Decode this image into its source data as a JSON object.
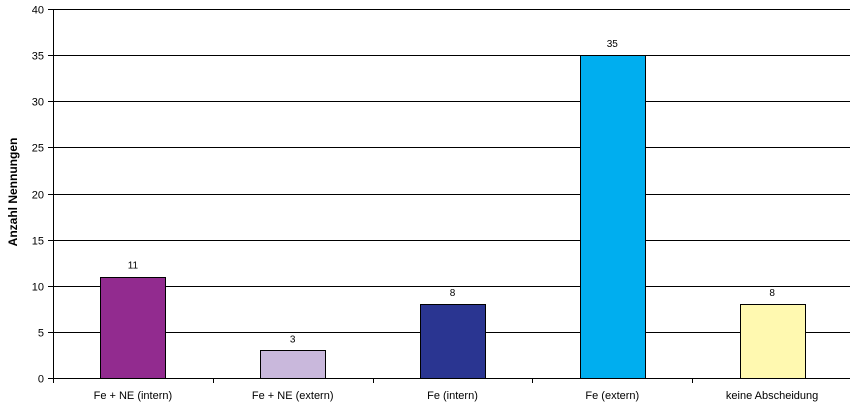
{
  "chart_data": {
    "type": "bar",
    "title": "",
    "xlabel": "",
    "ylabel": "Anzahl Nennungen",
    "ylim": [
      0,
      40
    ],
    "yticks": [
      0,
      5,
      10,
      15,
      20,
      25,
      30,
      35,
      40
    ],
    "grid": "horizontal",
    "legend": "none",
    "categories": [
      "Fe + NE (intern)",
      "Fe + NE (extern)",
      "Fe (intern)",
      "Fe (extern)",
      "keine Abscheidung"
    ],
    "values": [
      11,
      3,
      8,
      35,
      8
    ],
    "value_labels": [
      "11",
      "3",
      "8",
      "35",
      "8"
    ],
    "colors": [
      "#922B8F",
      "#C9B8DC",
      "#2A3591",
      "#00AEEF",
      "#FFF9B0"
    ]
  }
}
